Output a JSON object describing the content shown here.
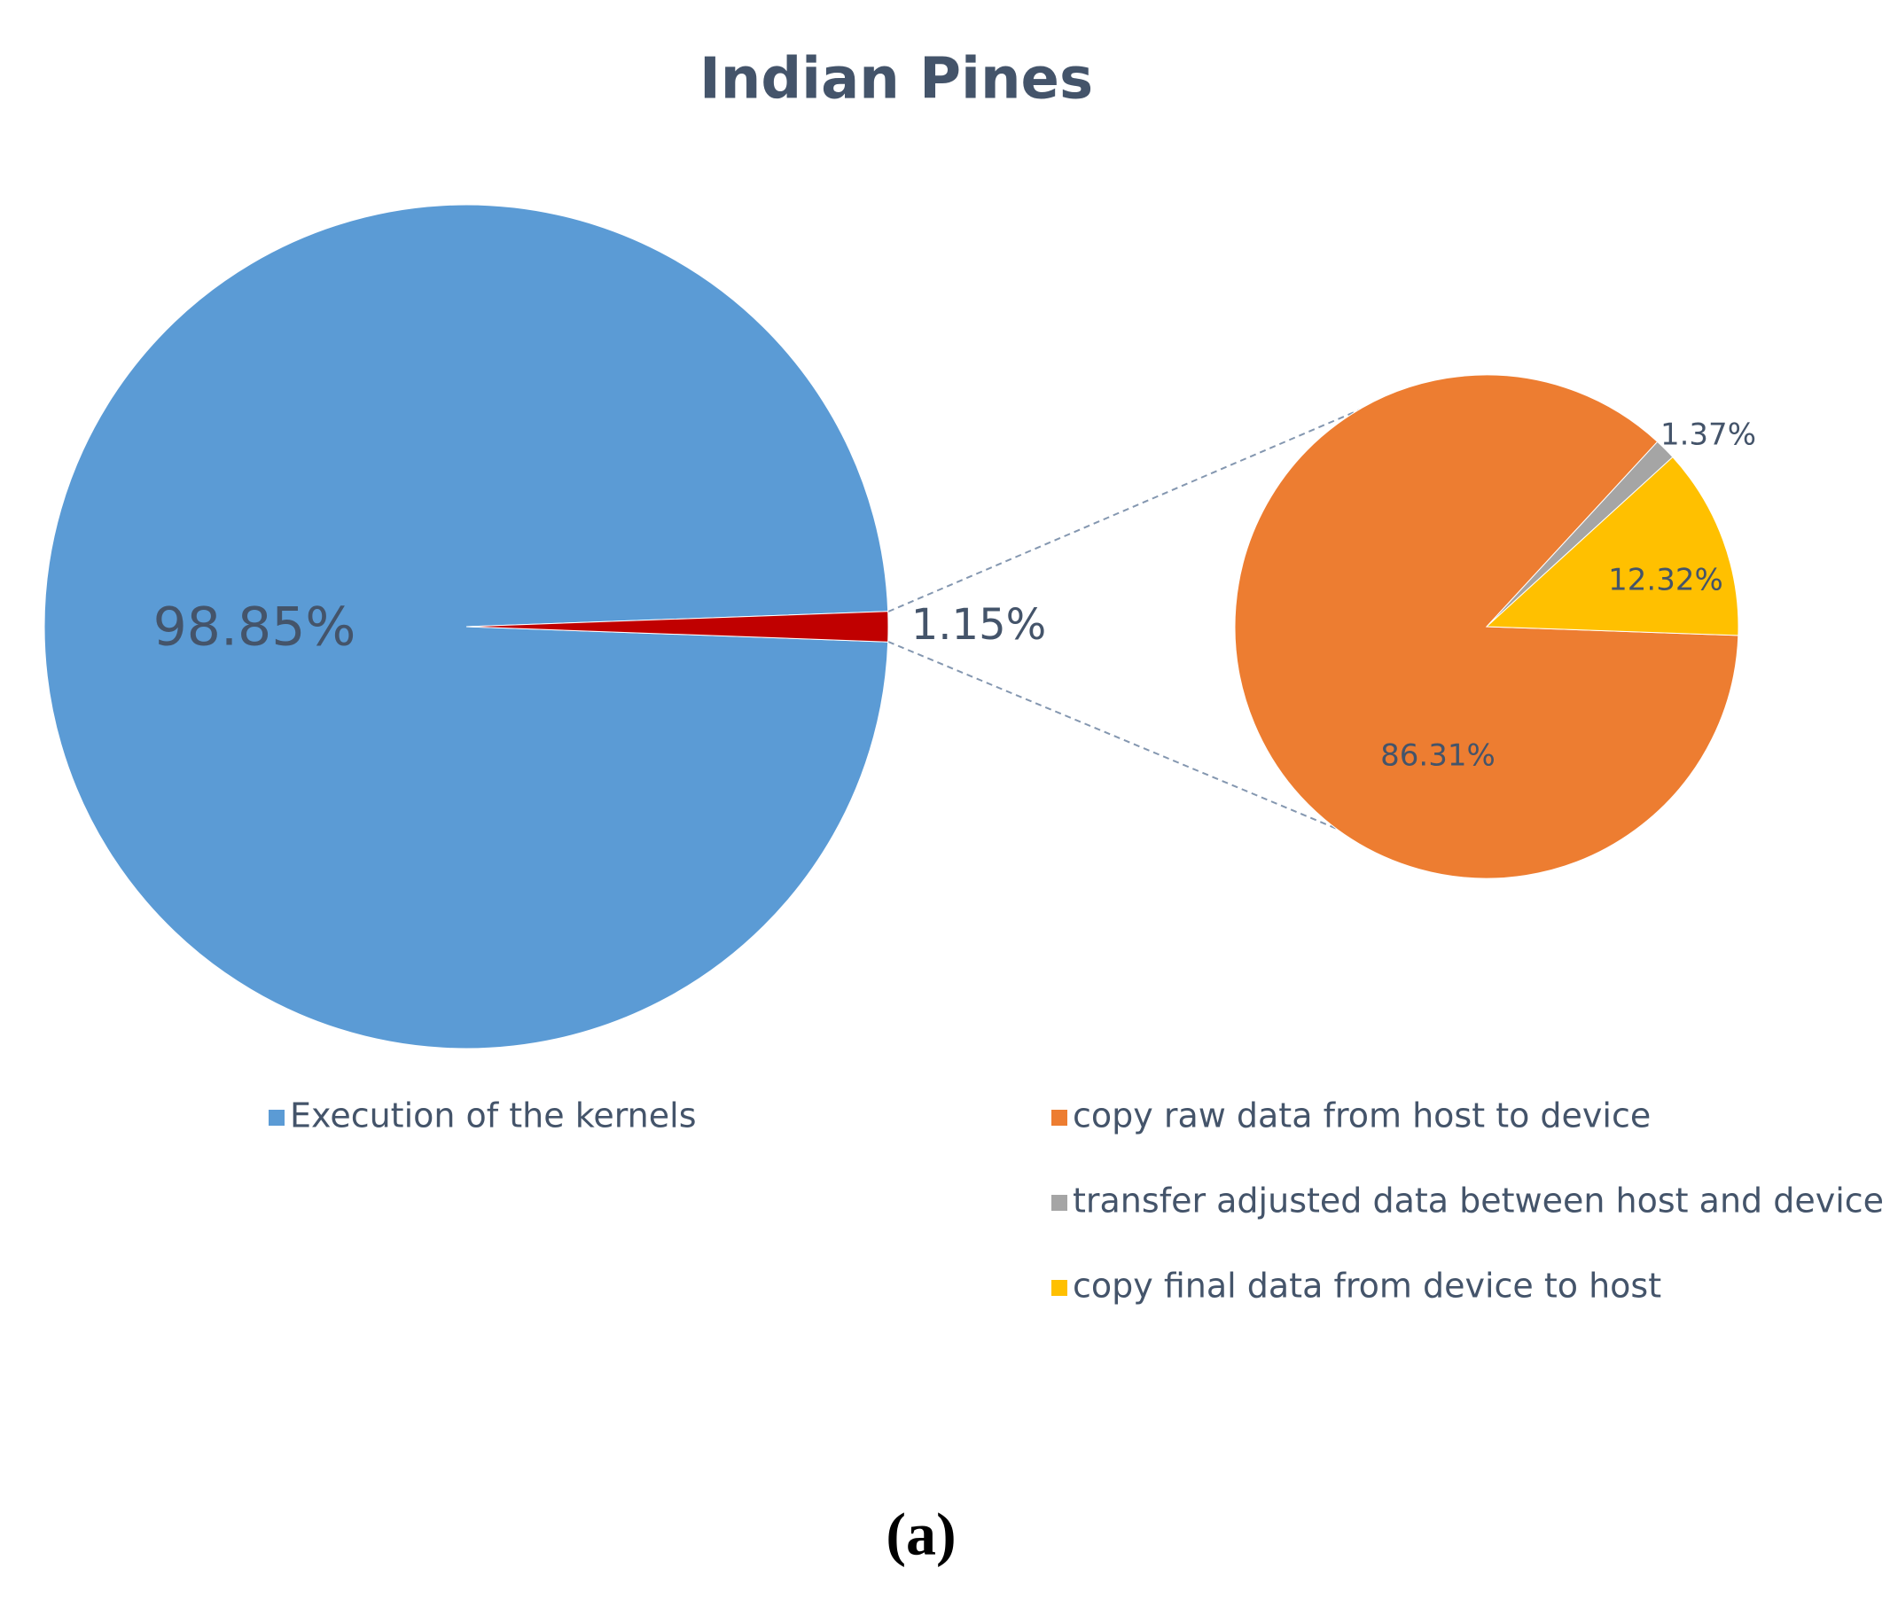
{
  "chart_data": [
    {
      "type": "pie",
      "title": "Indian Pines",
      "categories": [
        "Execution of the kernels",
        null
      ],
      "values": [
        98.85,
        1.15
      ],
      "value_labels": [
        "98.85%",
        "1.15%"
      ],
      "colors": [
        "#5b9bd5",
        "#c00000"
      ],
      "legend": "bottom"
    },
    {
      "type": "pie",
      "categories": [
        "copy raw data from host to device",
        "transfer adjusted data between host and device",
        "copy final data from device to host"
      ],
      "values": [
        86.31,
        1.37,
        12.32
      ],
      "value_labels": [
        "86.31%",
        "1.37%",
        "12.32%"
      ],
      "colors": [
        "#ed7d31",
        "#a5a5a5",
        "#ffc000"
      ],
      "legend": "bottom"
    }
  ],
  "caption": "(a)"
}
